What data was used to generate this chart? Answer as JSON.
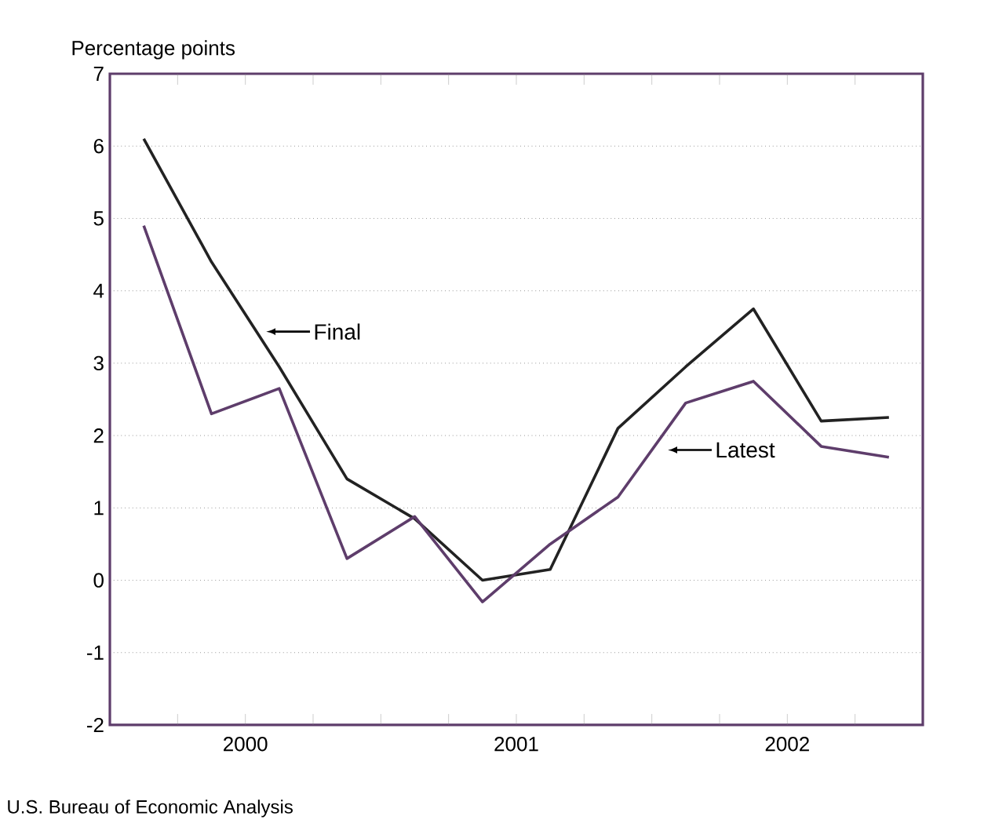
{
  "chart_data": {
    "type": "line",
    "ylabel": "Percentage points",
    "x": [
      2000.125,
      2000.375,
      2000.625,
      2000.875,
      2001.125,
      2001.375,
      2001.625,
      2001.875,
      2002.125,
      2002.375,
      2002.625,
      2002.875
    ],
    "series": [
      {
        "name": "Final",
        "color": "#222222",
        "values": [
          6.1,
          4.4,
          2.95,
          1.4,
          0.85,
          0.0,
          0.15,
          2.1,
          2.95,
          3.75,
          2.2,
          2.25
        ]
      },
      {
        "name": "Latest",
        "color": "#5e3d6b",
        "values": [
          4.9,
          2.3,
          2.65,
          0.3,
          0.88,
          -0.3,
          0.5,
          1.15,
          2.45,
          2.75,
          1.85,
          1.7
        ]
      }
    ],
    "xlim": [
      2000,
      2003
    ],
    "xticks": [
      {
        "value": 2000.25,
        "label": null
      },
      {
        "value": 2000.5,
        "label": null
      },
      {
        "value": 2000.75,
        "label": null
      },
      {
        "value": 2001,
        "label": null
      },
      {
        "value": 2001.25,
        "label": null
      },
      {
        "value": 2001.5,
        "label": null
      },
      {
        "value": 2001.75,
        "label": null
      },
      {
        "value": 2002,
        "label": null
      },
      {
        "value": 2002.25,
        "label": null
      },
      {
        "value": 2002.5,
        "label": null
      },
      {
        "value": 2002.75,
        "label": null
      },
      {
        "value": 2000.5,
        "label": "2000"
      },
      {
        "value": 2001.5,
        "label": "2001"
      },
      {
        "value": 2002.5,
        "label": "2002"
      }
    ],
    "ylim": [
      -2,
      7
    ],
    "yticks": [
      -2,
      -1,
      0,
      1,
      2,
      3,
      4,
      5,
      6,
      7
    ],
    "grid": "y",
    "legend": false,
    "marker": "none",
    "line_style": "solid",
    "annotations": [
      "U.S. Bureau of Economic Analysis"
    ]
  }
}
